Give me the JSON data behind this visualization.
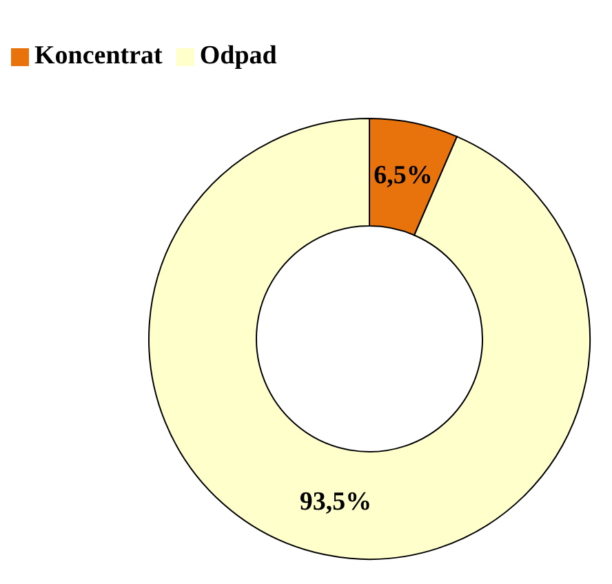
{
  "chart_data": {
    "type": "donut",
    "categories": [
      "Koncentrat",
      "Odpad"
    ],
    "values": [
      6.5,
      93.5
    ],
    "colors": [
      "#e8720c",
      "#ffffcc"
    ],
    "value_labels": [
      "6,5%",
      "93,5%"
    ],
    "legend": "top left"
  }
}
